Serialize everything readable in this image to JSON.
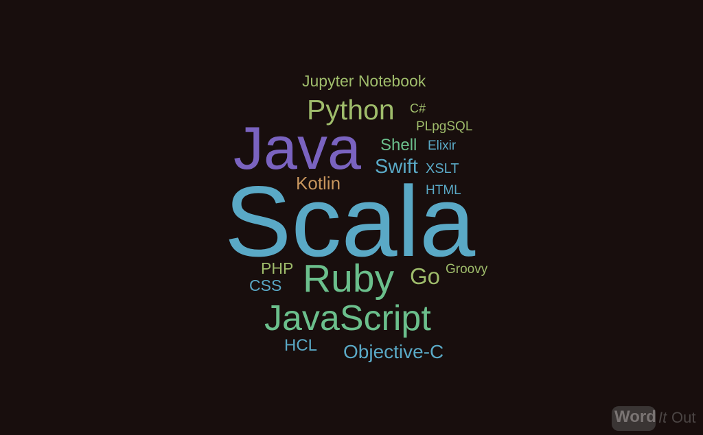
{
  "background": "#180e0d",
  "words": [
    {
      "key": "jupyter",
      "text": "Jupyter Notebook",
      "color": "#9fbc6b"
    },
    {
      "key": "python",
      "text": "Python",
      "color": "#9fbc6b"
    },
    {
      "key": "csharp",
      "text": "C#",
      "color": "#9fbc6b"
    },
    {
      "key": "plpgsql",
      "text": "PLpgSQL",
      "color": "#9fbc6b"
    },
    {
      "key": "java",
      "text": "Java",
      "color": "#7a63c0"
    },
    {
      "key": "shell",
      "text": "Shell",
      "color": "#6bbf8c"
    },
    {
      "key": "elixir",
      "text": "Elixir",
      "color": "#5aa9c6"
    },
    {
      "key": "swift",
      "text": "Swift",
      "color": "#5aa9c6"
    },
    {
      "key": "xslt",
      "text": "XSLT",
      "color": "#5aa9c6"
    },
    {
      "key": "kotlin",
      "text": "Kotlin",
      "color": "#c7955d"
    },
    {
      "key": "html",
      "text": "HTML",
      "color": "#5aa9c6"
    },
    {
      "key": "scala",
      "text": "Scala",
      "color": "#5aa9c6"
    },
    {
      "key": "php",
      "text": "PHP",
      "color": "#9fbc6b"
    },
    {
      "key": "groovy",
      "text": "Groovy",
      "color": "#9fbc6b"
    },
    {
      "key": "ruby",
      "text": "Ruby",
      "color": "#6bbf8c"
    },
    {
      "key": "go",
      "text": "Go",
      "color": "#9fbc6b"
    },
    {
      "key": "css",
      "text": "CSS",
      "color": "#5aa9c6"
    },
    {
      "key": "javascript",
      "text": "JavaScript",
      "color": "#6bbf8c"
    },
    {
      "key": "hcl",
      "text": "HCL",
      "color": "#5aa9c6"
    },
    {
      "key": "objc",
      "text": "Objective-C",
      "color": "#5aa9c6"
    }
  ],
  "logo": {
    "word": "Word",
    "it": "It",
    "out": "Out"
  }
}
